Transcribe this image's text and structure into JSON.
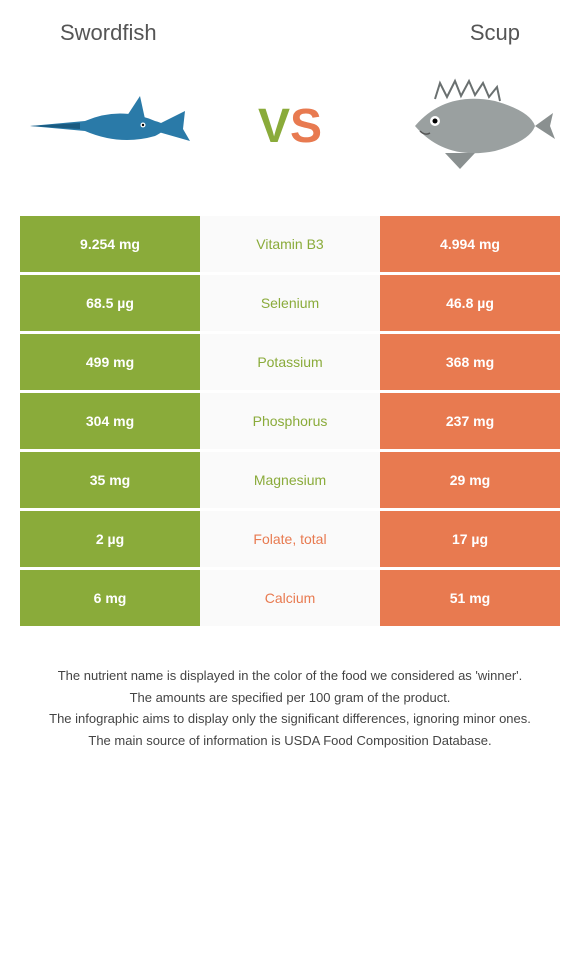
{
  "left_name": "Swordfish",
  "right_name": "Scup",
  "vs": {
    "v": "V",
    "s": "S"
  },
  "colors": {
    "left_bg": "#8aab3a",
    "right_bg": "#e87a50",
    "mid_bg": "#fafafa",
    "left_text": "#8aab3a",
    "right_text": "#e87a50"
  },
  "rows": [
    {
      "left": "9.254 mg",
      "label": "Vitamin B3",
      "right": "4.994 mg",
      "winner": "left"
    },
    {
      "left": "68.5 µg",
      "label": "Selenium",
      "right": "46.8 µg",
      "winner": "left"
    },
    {
      "left": "499 mg",
      "label": "Potassium",
      "right": "368 mg",
      "winner": "left"
    },
    {
      "left": "304 mg",
      "label": "Phosphorus",
      "right": "237 mg",
      "winner": "left"
    },
    {
      "left": "35 mg",
      "label": "Magnesium",
      "right": "29 mg",
      "winner": "left"
    },
    {
      "left": "2 µg",
      "label": "Folate, total",
      "right": "17 µg",
      "winner": "right"
    },
    {
      "left": "6 mg",
      "label": "Calcium",
      "right": "51 mg",
      "winner": "right"
    }
  ],
  "footer": [
    "The nutrient name is displayed in the color of the food we considered as 'winner'.",
    "The amounts are specified per 100 gram of the product.",
    "The infographic aims to display only the significant differences, ignoring minor ones.",
    "The main source of information is USDA Food Composition Database."
  ]
}
